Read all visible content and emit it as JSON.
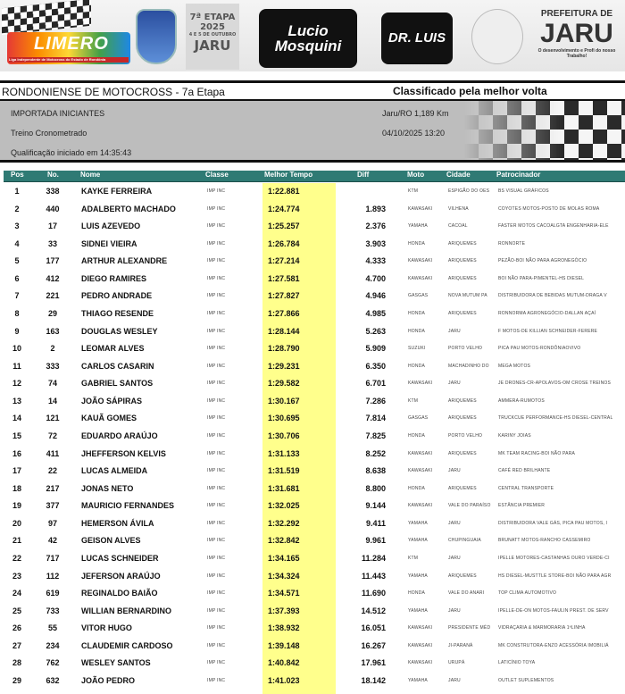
{
  "banner": {
    "limero": "LIMERO",
    "limero_sub": "Liga Independente de Motocross do Estado de Rondônia",
    "etapa": "7ª ETAPA",
    "ano": "2025",
    "datas": "4 E 5 DE OUTUBRO",
    "cidade": "JARU",
    "lucio": [
      "Lucio",
      "Mosquini"
    ],
    "luis": "DR. LUIS",
    "prefeitura": "PREFEITURA DE",
    "jaru": "JARU",
    "slogan": "O desenvolvimento e Profi do nosso Trabalho!"
  },
  "header": {
    "title": "RONDONIENSE DE MOTOCROSS - 7a Etapa",
    "classification": "Classificado pela melhor volta",
    "category": "IMPORTADA INICIANTES",
    "session": "Treino Cronometrado",
    "started": "Qualificação iniciado em 14:35:43",
    "track": "Jaru/RO 1,189 Km",
    "datetime": "04/10/2025 13:20"
  },
  "columns": [
    "Pos",
    "No.",
    "Nome",
    "Classe",
    "Melhor Tempo",
    "Diff",
    "Moto",
    "Cidade",
    "Patrocinador"
  ],
  "rows": [
    [
      "1",
      "338",
      "KAYKE FERREIRA",
      "IMP INC",
      "1:22.881",
      "",
      "KTM",
      "ESPIGÃO DO OES",
      "BS VISUAL GRÁFICOS"
    ],
    [
      "2",
      "440",
      "ADALBERTO MACHADO",
      "IMP INC",
      "1:24.774",
      "1.893",
      "KAWASAKI",
      "VILHENA",
      "COYOTES MOTOS-POSTO DE MOLAS ROMA"
    ],
    [
      "3",
      "17",
      "LUIS AZEVEDO",
      "IMP INC",
      "1:25.257",
      "2.376",
      "YAMAHA",
      "CACOAL",
      "FASTER MOTOS CACOALGTA ENGENHARIA-ELE"
    ],
    [
      "4",
      "33",
      "SIDNEI VIEIRA",
      "IMP INC",
      "1:26.784",
      "3.903",
      "HONDA",
      "ARIQUEMES",
      "RONNORTE"
    ],
    [
      "5",
      "177",
      "ARTHUR ALEXANDRE",
      "IMP INC",
      "1:27.214",
      "4.333",
      "KAWASAKI",
      "ARIQUEMES",
      "PEZÃO-BOI NÃO PARA AGRONEGÓCIO"
    ],
    [
      "6",
      "412",
      "DIEGO RAMIRES",
      "IMP INC",
      "1:27.581",
      "4.700",
      "KAWASAKI",
      "ARIQUEMES",
      "BOI NÃO PARA-PIMENTEL-HS DIESEL"
    ],
    [
      "7",
      "221",
      "PEDRO ANDRADE",
      "IMP INC",
      "1:27.827",
      "4.946",
      "GASGAS",
      "NOVA MUTUM PA",
      "DISTRIBUIDORA DE BEBIDAS MUTUM-DRAGA V"
    ],
    [
      "8",
      "29",
      "THIAGO RESENDE",
      "IMP INC",
      "1:27.866",
      "4.985",
      "HONDA",
      "ARIQUEMES",
      "RONNORMA AGRONEGÓCIO-DALLAN AÇAÍ"
    ],
    [
      "9",
      "163",
      "DOUGLAS WESLEY",
      "IMP INC",
      "1:28.144",
      "5.263",
      "HONDA",
      "JARU",
      "F MOTOS-DE KILLIAN SCHNEIDER-FERERE"
    ],
    [
      "10",
      "2",
      "LEOMAR ALVES",
      "IMP INC",
      "1:28.790",
      "5.909",
      "SUZUKI",
      "PORTO VELHO",
      "PICA PAU MOTOS-RONDÔNIAOVIVO"
    ],
    [
      "11",
      "333",
      "CARLOS CASARIN",
      "IMP INC",
      "1:29.231",
      "6.350",
      "HONDA",
      "MACHADINHO DO",
      "MEGA MOTOS"
    ],
    [
      "12",
      "74",
      "GABRIEL SANTOS",
      "IMP INC",
      "1:29.582",
      "6.701",
      "KAWASAKI",
      "JARU",
      "JE DRONES-CR-APOLAVOS-OM CROSE TREINOS"
    ],
    [
      "13",
      "14",
      "JOÃO SÁPIRAS",
      "IMP INC",
      "1:30.167",
      "7.286",
      "KTM",
      "ARIQUEMES",
      "AMMERA-RUMOTOS"
    ],
    [
      "14",
      "121",
      "KAUÃ GOMES",
      "IMP INC",
      "1:30.695",
      "7.814",
      "GASGAS",
      "ARIQUEMES",
      "TRUCKCUE PERFORMANCE-HS DIESEL-CENTRAL"
    ],
    [
      "15",
      "72",
      "EDUARDO ARAÚJO",
      "IMP INC",
      "1:30.706",
      "7.825",
      "HONDA",
      "PORTO VELHO",
      "KARINY JOIAS"
    ],
    [
      "16",
      "411",
      "JHEFFERSON KELVIS",
      "IMP INC",
      "1:31.133",
      "8.252",
      "KAWASAKI",
      "ARIQUEMES",
      "MK TEAM RACING-BOI NÃO PARA"
    ],
    [
      "17",
      "22",
      "LUCAS ALMEIDA",
      "IMP INC",
      "1:31.519",
      "8.638",
      "KAWASAKI",
      "JARU",
      "CAFÉ RED BRILHANTE"
    ],
    [
      "18",
      "217",
      "JONAS NETO",
      "IMP INC",
      "1:31.681",
      "8.800",
      "HONDA",
      "ARIQUEMES",
      "CENTRAL TRANSPORTE"
    ],
    [
      "19",
      "377",
      "MAURICIO FERNANDES",
      "IMP INC",
      "1:32.025",
      "9.144",
      "KAWASAKI",
      "VALE DO PARAÍSO",
      "ESTÂNCIA PREMIER"
    ],
    [
      "20",
      "97",
      "HEMERSON ÁVILA",
      "IMP INC",
      "1:32.292",
      "9.411",
      "YAMAHA",
      "JARU",
      "DISTRIBUIDORA VALE GÁS, PICA PAU MOTOS, I"
    ],
    [
      "21",
      "42",
      "GEISON ALVES",
      "IMP INC",
      "1:32.842",
      "9.961",
      "YAMAHA",
      "CHUPINGUAIA",
      "BRUNATT MOTOS-RANCHO CASSEMIRO"
    ],
    [
      "22",
      "717",
      "LUCAS SCHNEIDER",
      "IMP INC",
      "1:34.165",
      "11.284",
      "KTM",
      "JARU",
      "IPELLE MOTORES-CASTANHAS OURO VERDE-CI"
    ],
    [
      "23",
      "112",
      "JEFERSON ARAÚJO",
      "IMP INC",
      "1:34.324",
      "11.443",
      "YAMAHA",
      "ARIQUEMES",
      "HS DIESEL-MUSTTLE STORE-BOI NÃO PARA AGR"
    ],
    [
      "24",
      "619",
      "REGINALDO BAIÃO",
      "IMP INC",
      "1:34.571",
      "11.690",
      "HONDA",
      "VALE DO ANARI",
      "TOP CLIMA AUTOMOTIVO"
    ],
    [
      "25",
      "733",
      "WILLIAN BERNARDINO",
      "IMP INC",
      "1:37.393",
      "14.512",
      "YAMAHA",
      "JARU",
      "IPELLE-DE-ON MOTOS-FAULIN PREST. DE SERV"
    ],
    [
      "26",
      "55",
      "VITOR HUGO",
      "IMP INC",
      "1:38.932",
      "16.051",
      "KAWASAKI",
      "PRESIDENTE MÉD",
      "VIDRAÇARIA & MARMORARIA 1ªLINHA"
    ],
    [
      "27",
      "234",
      "CLAUDEMIR CARDOSO",
      "IMP INC",
      "1:39.148",
      "16.267",
      "KAWASAKI",
      "JI-PARANÁ",
      "MK CONSTRUTORA-ENZO ACESSÓRIA IMOBILIÁ"
    ],
    [
      "28",
      "762",
      "WESLEY SANTOS",
      "IMP INC",
      "1:40.842",
      "17.961",
      "KAWASAKI",
      "URUPÁ",
      "LATICÍNIO TOYA"
    ],
    [
      "29",
      "632",
      "JOÃO PEDRO",
      "IMP INC",
      "1:41.023",
      "18.142",
      "YAMAHA",
      "JARU",
      "OUTLET SUPLEMENTOS"
    ]
  ],
  "colors": {
    "header_bg": "#2f7a74",
    "best_time_highlight": "#ffff8c",
    "info_bg": "#bdbdbd"
  }
}
